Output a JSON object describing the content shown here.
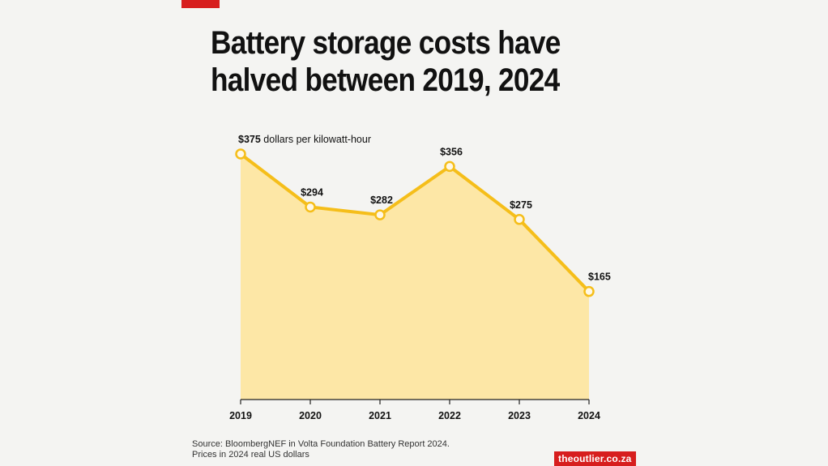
{
  "title": "Battery storage costs have halved between 2019, 2024",
  "source_lines": [
    "Source: BloombergNEF in Volta Foundation Battery Report 2024.",
    "Prices in 2024 real US dollars"
  ],
  "brand": "theoutlier.co.za",
  "colors": {
    "accent": "#d71e1e",
    "line": "#f5be1a",
    "area": "#fde7a6",
    "background": "#f4f4f2"
  },
  "chart_data": {
    "type": "area",
    "title": "Battery storage costs have halved between 2019, 2024",
    "categories": [
      "2019",
      "2020",
      "2021",
      "2022",
      "2023",
      "2024"
    ],
    "values": [
      375,
      294,
      282,
      356,
      275,
      165
    ],
    "value_labels": [
      "$375",
      "$294",
      "$282",
      "$356",
      "$275",
      "$165"
    ],
    "unit_label": "dollars per kilowatt-hour",
    "xlabel": "",
    "ylabel": "",
    "ylim": [
      0,
      375
    ],
    "grid": false
  }
}
